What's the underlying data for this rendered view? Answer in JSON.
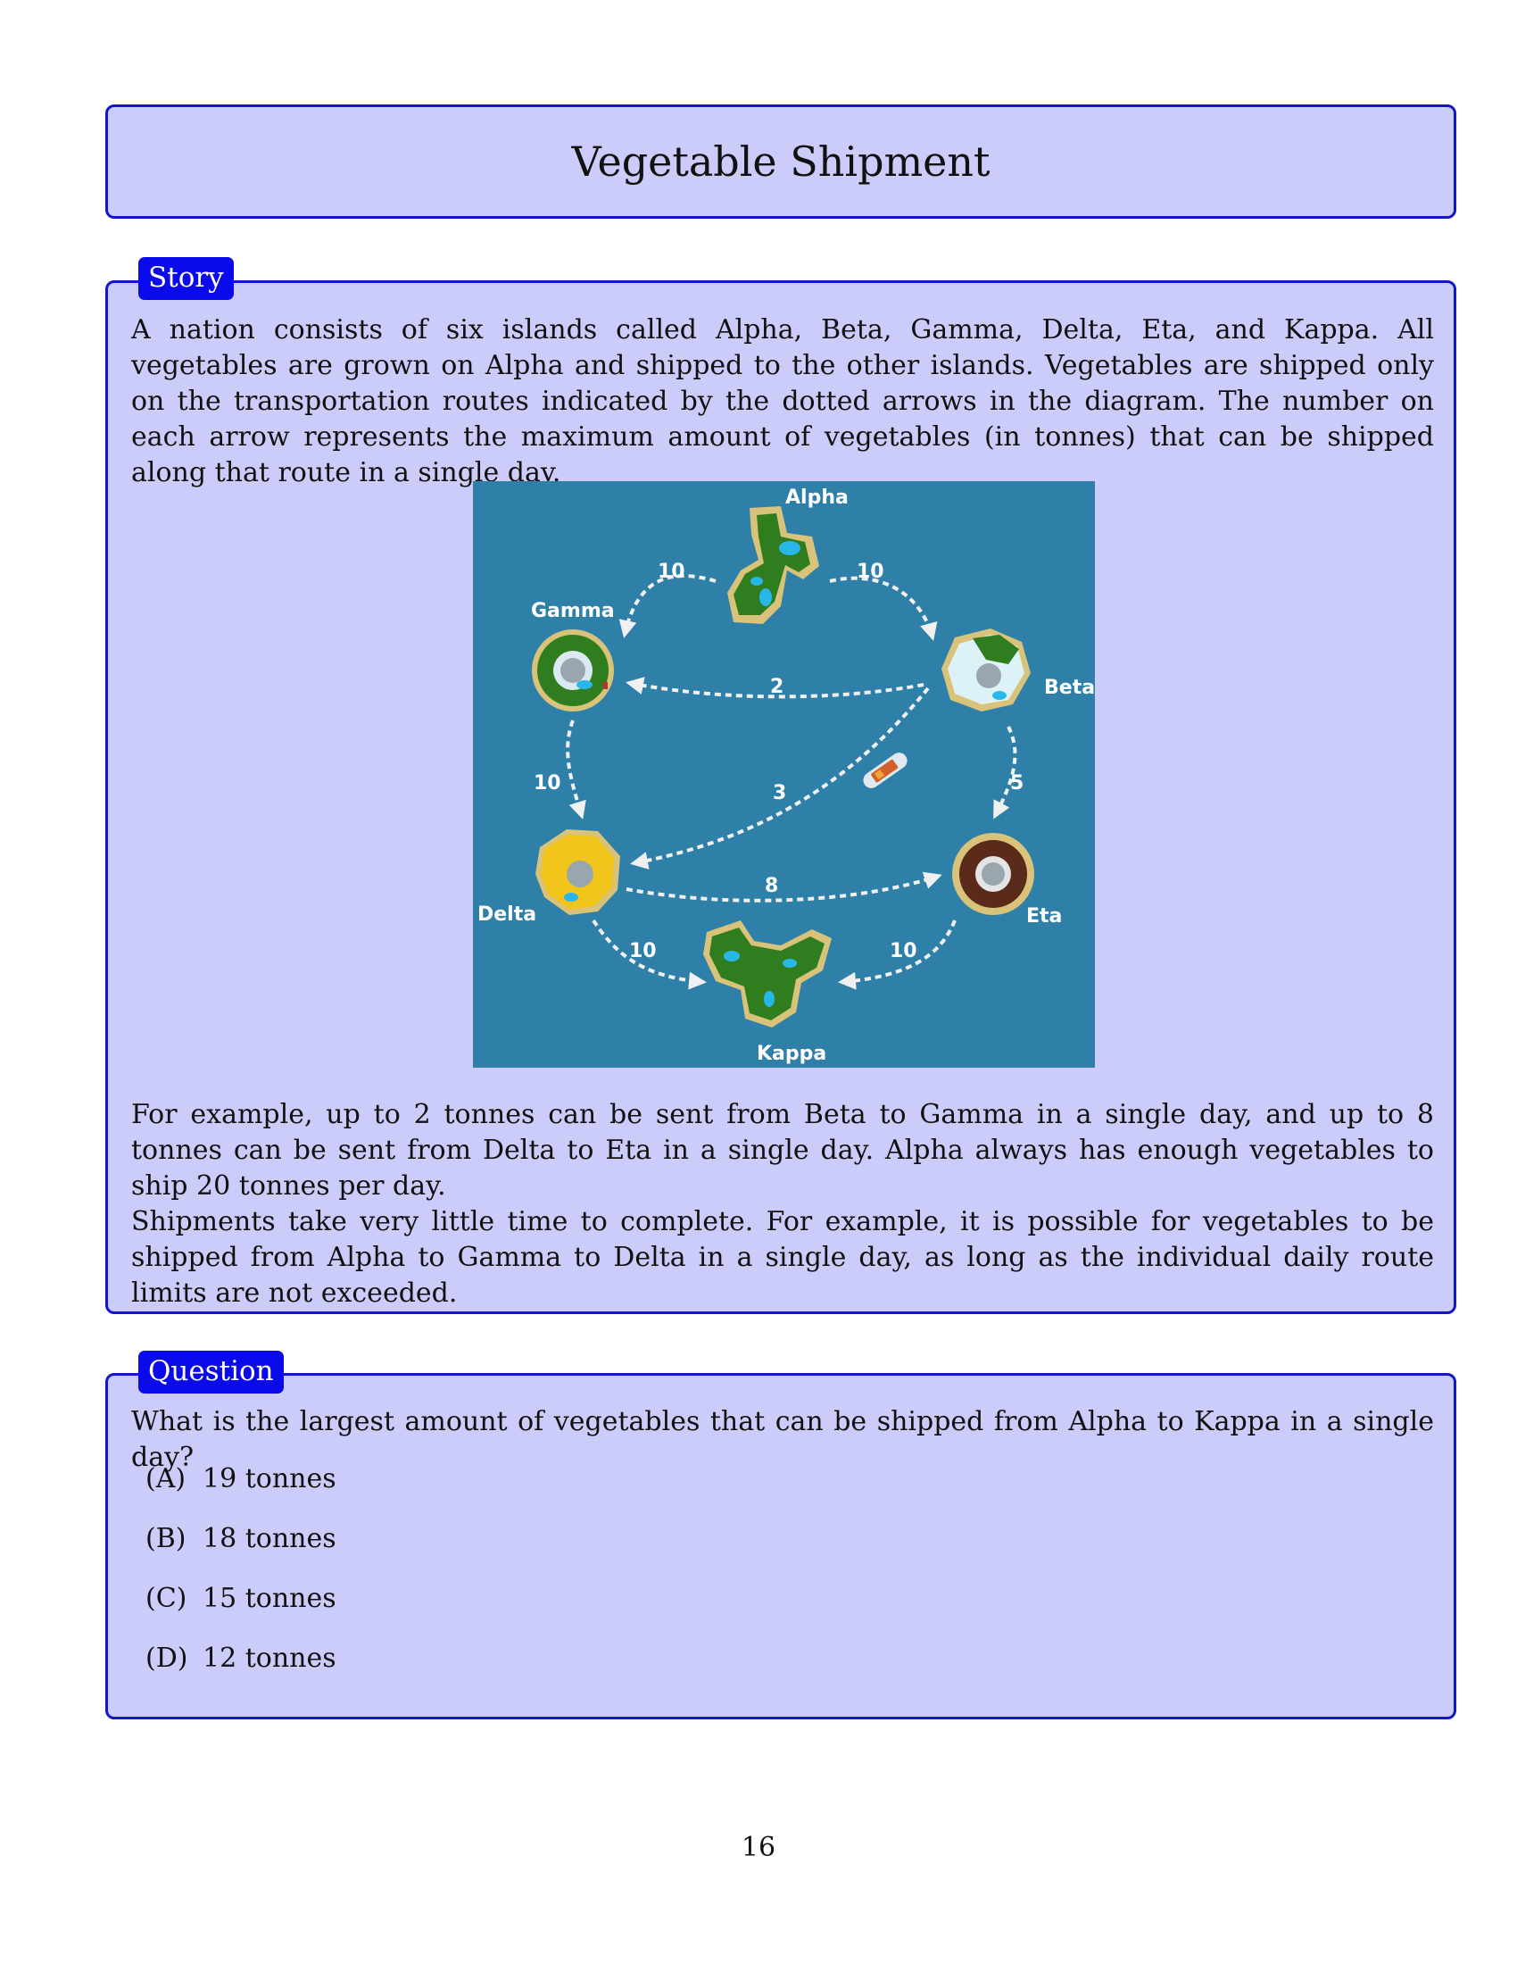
{
  "title": "Vegetable Shipment",
  "story": {
    "tab_label": "Story",
    "paragraph_1": "A nation consists of six islands called Alpha, Beta, Gamma, Delta, Eta, and Kappa. All vegetables are grown on Alpha and shipped to the other islands. Vegetables are shipped only on the transportation routes indicated by the dotted arrows in the diagram. The number on each arrow represents the maximum amount of vegetables (in tonnes) that can be shipped along that route in a single day.",
    "paragraph_2": "For example, up to 2 tonnes can be sent from Beta to Gamma in a single day, and up to 8 tonnes can be sent from Delta to Eta in a single day. Alpha always has enough vegetables to ship 20 tonnes per day.",
    "paragraph_3": "Shipments take very little time to complete. For example, it is possible for vegetables to be shipped from Alpha to Gamma to Delta in a single day, as long as the individual daily route limits are not exceeded."
  },
  "diagram": {
    "islands": {
      "alpha": "Alpha",
      "beta": "Beta",
      "gamma": "Gamma",
      "delta": "Delta",
      "eta": "Eta",
      "kappa": "Kappa"
    },
    "routes": {
      "alpha_gamma": "10",
      "alpha_beta": "10",
      "beta_gamma": "2",
      "gamma_delta": "10",
      "beta_delta": "3",
      "beta_eta": "5",
      "delta_eta": "8",
      "delta_kappa": "10",
      "eta_kappa": "10"
    },
    "colors": {
      "sea": "#2e80a8",
      "arrow": "#f0f0f0",
      "green_island": "#2f7d1e",
      "yellow_island": "#f2c51a",
      "brown_island": "#5a2a1a"
    }
  },
  "question": {
    "tab_label": "Question",
    "text": "What is the largest amount of vegetables that can be shipped from Alpha to Kappa in a single day?",
    "options": [
      {
        "letter": "(A)",
        "text": "19 tonnes"
      },
      {
        "letter": "(B)",
        "text": "18 tonnes"
      },
      {
        "letter": "(C)",
        "text": "15 tonnes"
      },
      {
        "letter": "(D)",
        "text": "12 tonnes"
      }
    ]
  },
  "page_number": "16"
}
